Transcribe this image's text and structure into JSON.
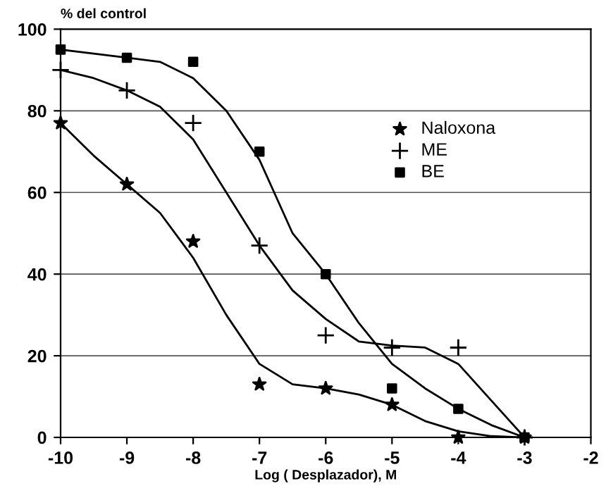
{
  "chart_data": {
    "type": "scatter",
    "ylabel": "% del control",
    "xlabel": "Log ( Desplazador), M",
    "xlim": [
      -10,
      -2
    ],
    "xticks": [
      -10,
      -9,
      -8,
      -7,
      -6,
      -5,
      -4,
      -3,
      -2
    ],
    "ylim": [
      0,
      100
    ],
    "yticks": [
      0,
      20,
      40,
      60,
      80,
      100
    ],
    "grid": "y",
    "legend": "top right",
    "series": [
      {
        "type": "line",
        "color": "#000000",
        "marker": "none",
        "line_style": "solid",
        "x": [
          -10,
          -9.5,
          -9,
          -8.5,
          -8,
          -7.5,
          -7,
          -6.5,
          -6,
          -5.5,
          -5,
          -4.5,
          -4,
          -3.5,
          -3
        ],
        "values": [
          77,
          69,
          62,
          55,
          44,
          30,
          18,
          13,
          12,
          10.5,
          8,
          4,
          1.5,
          0.3,
          0
        ]
      },
      {
        "type": "line",
        "color": "#000000",
        "marker": "none",
        "line_style": "solid",
        "x": [
          -10,
          -9.5,
          -9,
          -8.5,
          -8,
          -7.5,
          -7,
          -6.5,
          -6,
          -5.5,
          -5,
          -4.5,
          -4,
          -3.5,
          -3
        ],
        "values": [
          90,
          88,
          85,
          81,
          73,
          60,
          47,
          36,
          29,
          23.5,
          22.5,
          22,
          18,
          9,
          0
        ]
      },
      {
        "type": "line",
        "color": "#000000",
        "marker": "none",
        "line_style": "solid",
        "x": [
          -10,
          -9.5,
          -9,
          -8.5,
          -8,
          -7.5,
          -7,
          -6.5,
          -6,
          -5.5,
          -5,
          -4.5,
          -4,
          -3.5,
          -3
        ],
        "values": [
          95,
          94,
          93,
          92,
          88,
          80,
          68,
          50,
          40,
          28,
          18,
          12,
          7,
          3,
          0
        ]
      },
      {
        "name": "Naloxona",
        "color": "#000000",
        "marker": "star",
        "x": [
          -10,
          -9,
          -8,
          -7,
          -6,
          -5,
          -4,
          -3
        ],
        "values": [
          77,
          62,
          48,
          13,
          12,
          8,
          0,
          0
        ]
      },
      {
        "name": "ME",
        "color": "#000000",
        "marker": "cross",
        "x": [
          -10,
          -9,
          -8,
          -7,
          -6,
          -5,
          -4,
          -3
        ],
        "values": [
          90,
          85,
          77,
          47,
          25,
          22,
          22,
          0
        ]
      },
      {
        "name": "BE",
        "color": "#000000",
        "marker": "square",
        "x": [
          -10,
          -9,
          -8,
          -7,
          -6,
          -5,
          -4,
          -3
        ],
        "values": [
          95,
          93,
          92,
          70,
          40,
          12,
          7,
          0
        ]
      }
    ]
  }
}
